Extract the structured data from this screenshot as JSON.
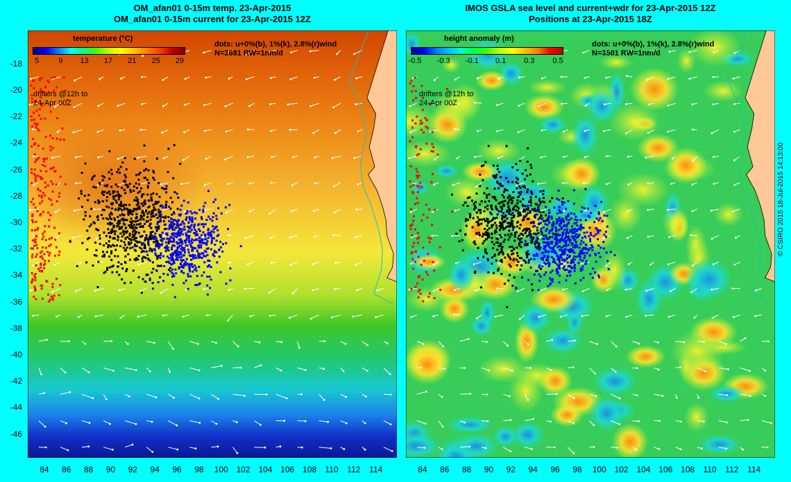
{
  "left_panel": {
    "title_line1": "OM_afan01 0-15m temp. 23-Apr-2015",
    "title_line2": "OM_afan01 0-15m current for 23-Apr-2015 12Z",
    "colorbar_title": "temperature (°C)",
    "colorbar_ticks": [
      "5",
      "9",
      "13",
      "17",
      "21",
      "25",
      "29"
    ],
    "dots_legend": "dots: u+0%(b), 1%(k), 2.8%(r)wind",
    "stats": "N=2681 RW=1nm/d",
    "drifters_note_line1": "drifters @12h to",
    "drifters_note_line2": "24-Apr 00Z"
  },
  "right_panel": {
    "title_line1": "IMOS GSLA sea level and current+wdr for 23-Apr-2015 12Z",
    "title_line2": "Positions at 23-Apr-2015 18Z",
    "colorbar_title": "height anomaly (m)",
    "colorbar_ticks": [
      "-0.5",
      "-0.3",
      "-0.1",
      "0.1",
      "0.3",
      "0.5"
    ],
    "dots_legend": "dots: u+0%(b), 1%(k), 2.8%(r)wind",
    "stats": "N=3501 RW=1nm/d",
    "drifters_note_line1": "drifters @12h to",
    "drifters_note_line2": "24-Apr 00Z"
  },
  "lat_labels": [
    "-18",
    "-20",
    "-22",
    "-24",
    "-26",
    "-28",
    "-30",
    "-32",
    "-34",
    "-36",
    "-38",
    "-40",
    "-42",
    "-44",
    "-46"
  ],
  "lon_labels": [
    "84",
    "86",
    "88",
    "90",
    "92",
    "94",
    "96",
    "98",
    "100",
    "102",
    "104",
    "106",
    "108",
    "110",
    "112",
    "114"
  ],
  "map_extent": {
    "lon_min": 82.5,
    "lon_max": 115.9,
    "lat_min": -47.8,
    "lat_max": -15.5
  },
  "copyright": "© CSIRO 2015   18-Jul-2015 14:13:00",
  "colors": {
    "background": "#00ffff",
    "land": "#ffc896",
    "drifter_blue": "#0000ff",
    "drifter_black": "#000000",
    "drifter_red": "#ff0000"
  }
}
